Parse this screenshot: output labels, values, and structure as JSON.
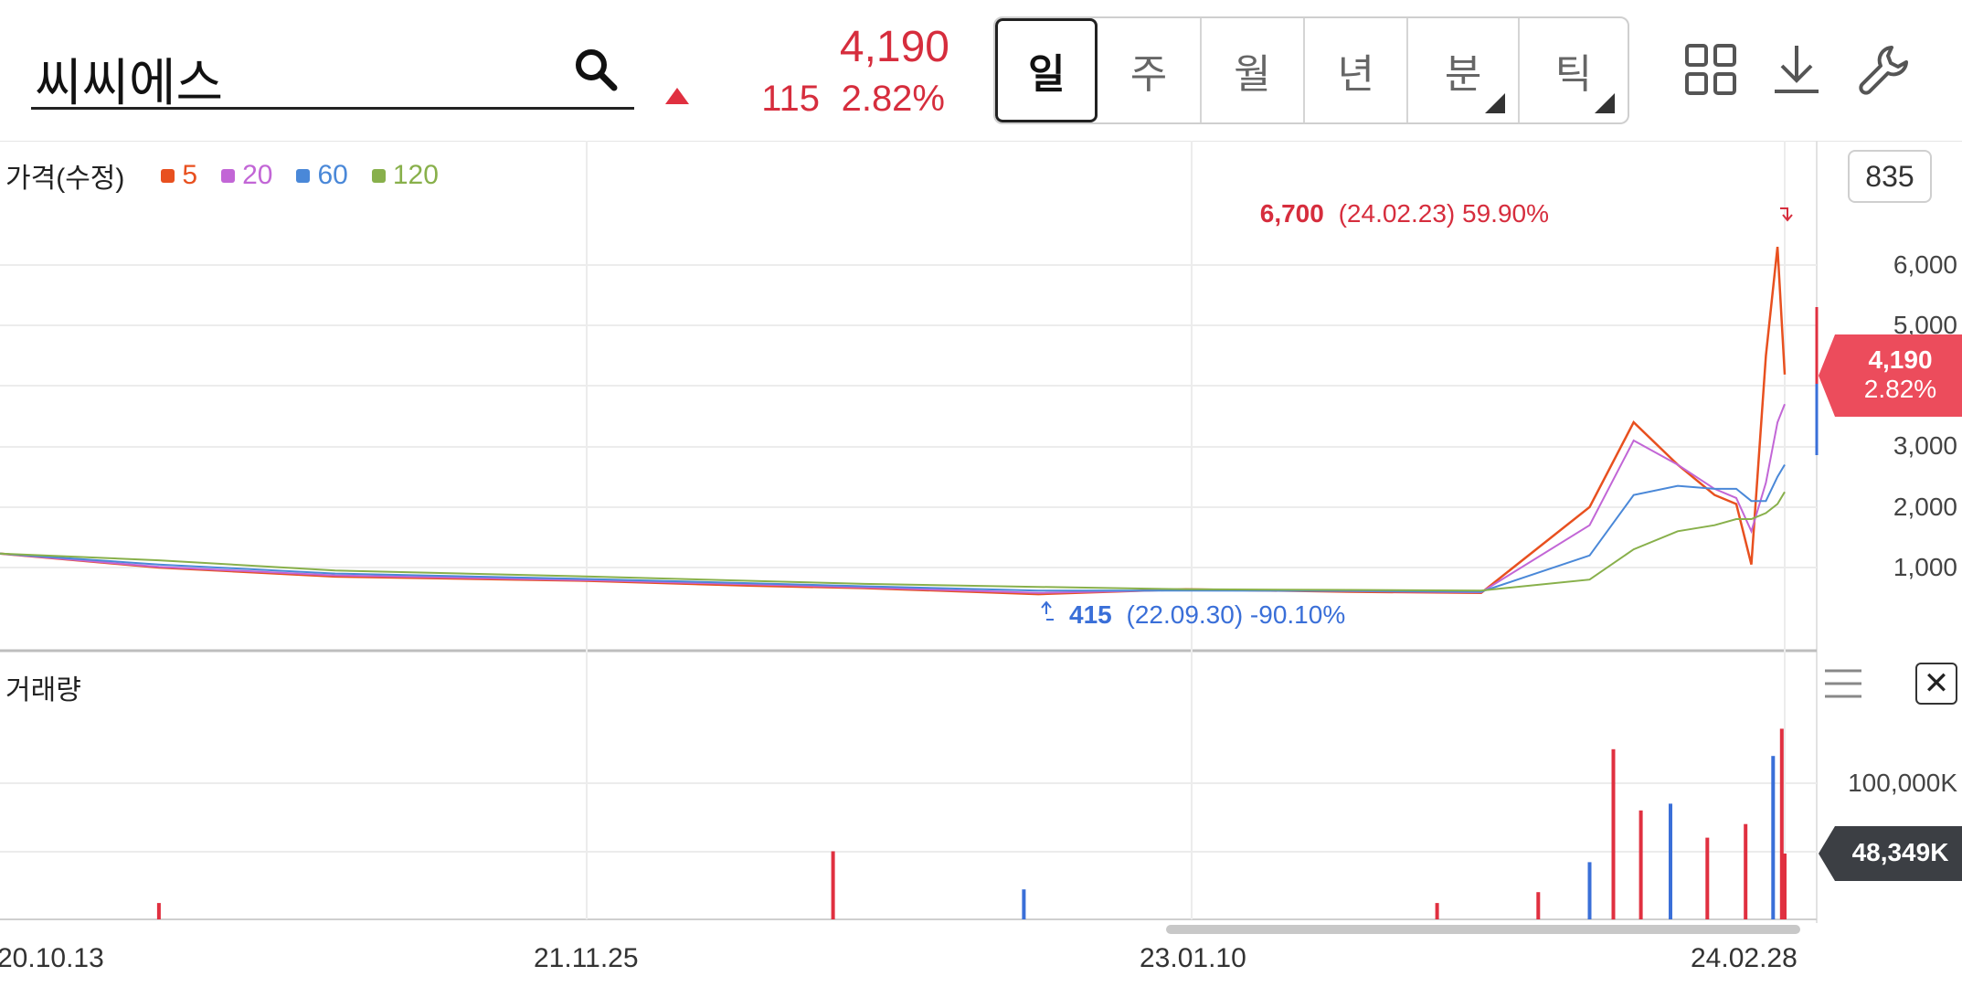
{
  "header": {
    "stock_name": "씨씨에스",
    "price": "4,190",
    "change": "115",
    "change_pct": "2.82%",
    "periods": [
      {
        "label": "일",
        "active": true,
        "submenu": false
      },
      {
        "label": "주",
        "active": false,
        "submenu": false
      },
      {
        "label": "월",
        "active": false,
        "submenu": false
      },
      {
        "label": "년",
        "active": false,
        "submenu": false
      },
      {
        "label": "분",
        "active": false,
        "submenu": true
      },
      {
        "label": "틱",
        "active": false,
        "submenu": true
      }
    ],
    "icons": [
      "grid-icon",
      "download-icon",
      "wrench-icon"
    ]
  },
  "colors": {
    "up": "#e03040",
    "down": "#3a6fd8",
    "ma5": "#e8501f",
    "ma20": "#c266d6",
    "ma60": "#4a88d8",
    "ma120": "#88b04b"
  },
  "price_panel": {
    "title": "가격(수정)",
    "legend": [
      {
        "label": "5",
        "color": "#e8501f"
      },
      {
        "label": "20",
        "color": "#c266d6"
      },
      {
        "label": "60",
        "color": "#4a88d8"
      },
      {
        "label": "120",
        "color": "#88b04b"
      }
    ],
    "zoom_count": "835",
    "y_ticks": [
      "6,000",
      "5,000",
      "3,000",
      "2,000",
      "1,000"
    ],
    "current_price": "4,190",
    "current_pct": "2.82%",
    "max_annotation": {
      "value": "6,700",
      "text": "(24.02.23) 59.90%"
    },
    "min_annotation": {
      "value": "415",
      "text": "(22.09.30) -90.10%"
    }
  },
  "volume_panel": {
    "title": "거래량",
    "y_tick": "100,000K",
    "current_volume": "48,349K"
  },
  "x_axis": [
    "20.10.13",
    "21.11.25",
    "23.01.10",
    "24.02.28"
  ],
  "chart_data": {
    "type": "line",
    "title": "",
    "ylabel": "",
    "xlabel": "",
    "ylim": [
      0,
      7300
    ],
    "x": [
      "20.10.13",
      "21.02.01",
      "21.06.01",
      "21.11.25",
      "22.03.15",
      "22.06.01",
      "22.09.30",
      "23.01.10",
      "23.05.01",
      "23.08.01",
      "23.10.15",
      "23.11.15",
      "23.12.15",
      "24.01.10",
      "24.01.25",
      "24.02.05",
      "24.02.15",
      "24.02.23",
      "24.02.28"
    ],
    "series": [
      {
        "name": "5",
        "values": [
          1230,
          1000,
          850,
          780,
          700,
          660,
          560,
          640,
          600,
          580,
          2000,
          3400,
          2700,
          2200,
          2050,
          1050,
          4500,
          6300,
          4190
        ]
      },
      {
        "name": "20",
        "values": [
          1230,
          1010,
          870,
          790,
          720,
          670,
          580,
          630,
          610,
          590,
          1700,
          3100,
          2700,
          2300,
          2150,
          1600,
          2400,
          3400,
          3700
        ]
      },
      {
        "name": "60",
        "values": [
          1230,
          1050,
          900,
          810,
          740,
          690,
          620,
          620,
          615,
          600,
          1200,
          2200,
          2350,
          2300,
          2300,
          2100,
          2100,
          2500,
          2700
        ]
      },
      {
        "name": "120",
        "values": [
          1230,
          1120,
          950,
          850,
          780,
          730,
          680,
          640,
          630,
          620,
          800,
          1300,
          1600,
          1700,
          1800,
          1800,
          1900,
          2050,
          2250
        ]
      }
    ],
    "volume": {
      "x": [
        "21.02.01",
        "22.05.10",
        "22.09.20",
        "23.07.01",
        "23.09.10",
        "23.10.15",
        "23.11.01",
        "23.11.20",
        "23.12.10",
        "24.01.05",
        "24.02.01",
        "24.02.20",
        "24.02.26",
        "24.02.28"
      ],
      "values": [
        12000,
        50000,
        22000,
        12000,
        20000,
        42000,
        125000,
        80000,
        85000,
        60000,
        70000,
        120000,
        140000,
        48349
      ]
    }
  }
}
